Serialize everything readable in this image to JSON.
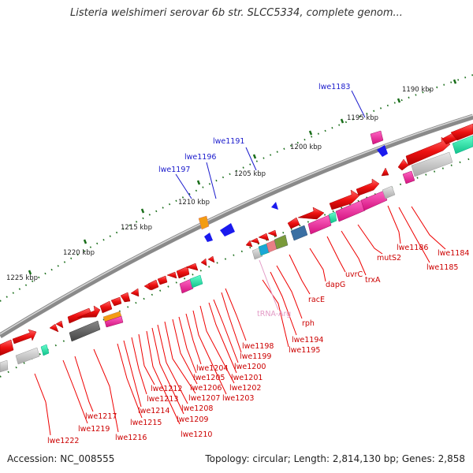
{
  "title": "Listeria welshimeri serovar 6b str. SLCC5334, complete genom...",
  "footer": {
    "accession": "Accession: NC_008555",
    "topology": "Topology: circular; Length: 2,814,130 bp; Genes: 2,858"
  },
  "colors": {
    "backbone": "#8a8a8a",
    "cds_red": "#ee1111",
    "gene_label": "#cc0000",
    "blue_label": "#1a1acc",
    "trna_label": "#e39bc6",
    "tick_green": "#1a6e1a"
  },
  "scale_labels": [
    "1190 kbp",
    "1195 kbp",
    "1200 kbp",
    "1205 kbp",
    "1210 kbp",
    "1215 kbp",
    "1220 kbp",
    "1225 kbp"
  ],
  "blue_labels": [
    "lwe1183",
    "lwe1191",
    "lwe1196",
    "lwe1197"
  ],
  "red_labels": [
    "lwe1184",
    "lwe1185",
    "lwe1186",
    "mutS2",
    "trxA",
    "uvrC",
    "dapG",
    "racE",
    "rph",
    "lwe1194",
    "lwe1195",
    "lwe1198",
    "lwe1199",
    "lwe1200",
    "lwe1201",
    "lwe1202",
    "lwe1203",
    "lwe1204",
    "lwe1205",
    "lwe1206",
    "lwe1207",
    "lwe1208",
    "lwe1209",
    "lwe1210",
    "lwe1212",
    "lwe1213",
    "lwe1214",
    "lwe1215",
    "lwe1216",
    "lwe1217",
    "lwe1219",
    "lwe1222"
  ],
  "trna_label": "tRNA-Arg"
}
